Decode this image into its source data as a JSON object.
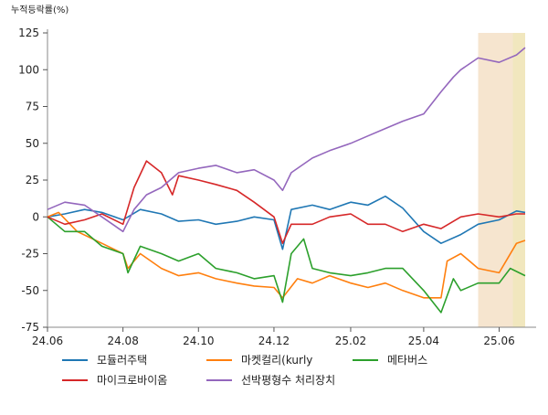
{
  "chart_data": {
    "type": "line",
    "ylabel": "누적등락률(%)",
    "ylim": [
      -75,
      125
    ],
    "yticks": [
      -75,
      -50,
      -25,
      0,
      25,
      50,
      75,
      100,
      125
    ],
    "xticks": [
      "24.06",
      "24.08",
      "24.10",
      "24.12",
      "25.02",
      "25.04",
      "25.06"
    ],
    "xrange": [
      "2024-06-01",
      "2025-06-22"
    ],
    "grid": false,
    "legend_position": "bottom",
    "shaded_regions": [
      {
        "from": "2025-05-15",
        "to": "2025-06-12",
        "color": "#f6e5cf"
      },
      {
        "from": "2025-06-12",
        "to": "2025-06-22",
        "color": "#f1e7be"
      }
    ],
    "series": [
      {
        "name": "모듈러주택",
        "color": "#1f77b4",
        "points": [
          [
            "2024-06-01",
            0
          ],
          [
            "2024-06-15",
            2
          ],
          [
            "2024-07-01",
            5
          ],
          [
            "2024-07-15",
            3
          ],
          [
            "2024-08-01",
            -2
          ],
          [
            "2024-08-15",
            5
          ],
          [
            "2024-09-01",
            2
          ],
          [
            "2024-09-15",
            -3
          ],
          [
            "2024-10-01",
            -2
          ],
          [
            "2024-10-15",
            -5
          ],
          [
            "2024-11-01",
            -3
          ],
          [
            "2024-11-15",
            0
          ],
          [
            "2024-12-01",
            -2
          ],
          [
            "2024-12-08",
            -22
          ],
          [
            "2024-12-15",
            5
          ],
          [
            "2025-01-01",
            8
          ],
          [
            "2025-01-15",
            5
          ],
          [
            "2025-02-01",
            10
          ],
          [
            "2025-02-15",
            8
          ],
          [
            "2025-03-01",
            14
          ],
          [
            "2025-03-15",
            6
          ],
          [
            "2025-04-01",
            -10
          ],
          [
            "2025-04-15",
            -18
          ],
          [
            "2025-05-01",
            -12
          ],
          [
            "2025-05-15",
            -5
          ],
          [
            "2025-06-01",
            -2
          ],
          [
            "2025-06-15",
            4
          ],
          [
            "2025-06-22",
            3
          ]
        ]
      },
      {
        "name": "마켓컬리(kurly",
        "color": "#ff7f0e",
        "points": [
          [
            "2024-06-01",
            0
          ],
          [
            "2024-06-10",
            3
          ],
          [
            "2024-06-25",
            -10
          ],
          [
            "2024-07-15",
            -18
          ],
          [
            "2024-08-01",
            -25
          ],
          [
            "2024-08-05",
            -35
          ],
          [
            "2024-08-15",
            -25
          ],
          [
            "2024-09-01",
            -35
          ],
          [
            "2024-09-15",
            -40
          ],
          [
            "2024-10-01",
            -38
          ],
          [
            "2024-10-15",
            -42
          ],
          [
            "2024-11-01",
            -45
          ],
          [
            "2024-11-15",
            -47
          ],
          [
            "2024-12-01",
            -48
          ],
          [
            "2024-12-08",
            -55
          ],
          [
            "2024-12-20",
            -42
          ],
          [
            "2025-01-01",
            -45
          ],
          [
            "2025-01-15",
            -40
          ],
          [
            "2025-02-01",
            -45
          ],
          [
            "2025-02-15",
            -48
          ],
          [
            "2025-03-01",
            -45
          ],
          [
            "2025-03-15",
            -50
          ],
          [
            "2025-04-01",
            -55
          ],
          [
            "2025-04-15",
            -55
          ],
          [
            "2025-04-20",
            -30
          ],
          [
            "2025-05-01",
            -25
          ],
          [
            "2025-05-15",
            -35
          ],
          [
            "2025-06-01",
            -38
          ],
          [
            "2025-06-08",
            -28
          ],
          [
            "2025-06-15",
            -18
          ],
          [
            "2025-06-22",
            -16
          ]
        ]
      },
      {
        "name": "메타버스",
        "color": "#2ca02c",
        "points": [
          [
            "2024-06-01",
            0
          ],
          [
            "2024-06-15",
            -10
          ],
          [
            "2024-07-01",
            -10
          ],
          [
            "2024-07-15",
            -20
          ],
          [
            "2024-08-01",
            -25
          ],
          [
            "2024-08-05",
            -38
          ],
          [
            "2024-08-15",
            -20
          ],
          [
            "2024-09-01",
            -25
          ],
          [
            "2024-09-15",
            -30
          ],
          [
            "2024-10-01",
            -25
          ],
          [
            "2024-10-15",
            -35
          ],
          [
            "2024-11-01",
            -38
          ],
          [
            "2024-11-15",
            -42
          ],
          [
            "2024-12-01",
            -40
          ],
          [
            "2024-12-08",
            -58
          ],
          [
            "2024-12-15",
            -25
          ],
          [
            "2024-12-25",
            -15
          ],
          [
            "2025-01-01",
            -35
          ],
          [
            "2025-01-15",
            -38
          ],
          [
            "2025-02-01",
            -40
          ],
          [
            "2025-02-15",
            -38
          ],
          [
            "2025-03-01",
            -35
          ],
          [
            "2025-03-15",
            -35
          ],
          [
            "2025-04-01",
            -50
          ],
          [
            "2025-04-15",
            -65
          ],
          [
            "2025-04-25",
            -42
          ],
          [
            "2025-05-01",
            -50
          ],
          [
            "2025-05-15",
            -45
          ],
          [
            "2025-06-01",
            -45
          ],
          [
            "2025-06-10",
            -35
          ],
          [
            "2025-06-22",
            -40
          ]
        ]
      },
      {
        "name": "마이크로바이옴",
        "color": "#d62728",
        "points": [
          [
            "2024-06-01",
            0
          ],
          [
            "2024-06-15",
            -5
          ],
          [
            "2024-07-01",
            -2
          ],
          [
            "2024-07-15",
            2
          ],
          [
            "2024-08-01",
            -5
          ],
          [
            "2024-08-10",
            20
          ],
          [
            "2024-08-20",
            38
          ],
          [
            "2024-09-01",
            30
          ],
          [
            "2024-09-10",
            15
          ],
          [
            "2024-09-15",
            28
          ],
          [
            "2024-10-01",
            25
          ],
          [
            "2024-10-15",
            22
          ],
          [
            "2024-11-01",
            18
          ],
          [
            "2024-11-15",
            10
          ],
          [
            "2024-12-01",
            0
          ],
          [
            "2024-12-08",
            -18
          ],
          [
            "2024-12-15",
            -5
          ],
          [
            "2025-01-01",
            -5
          ],
          [
            "2025-01-15",
            0
          ],
          [
            "2025-02-01",
            2
          ],
          [
            "2025-02-15",
            -5
          ],
          [
            "2025-03-01",
            -5
          ],
          [
            "2025-03-15",
            -10
          ],
          [
            "2025-04-01",
            -5
          ],
          [
            "2025-04-15",
            -8
          ],
          [
            "2025-05-01",
            0
          ],
          [
            "2025-05-15",
            2
          ],
          [
            "2025-06-01",
            0
          ],
          [
            "2025-06-15",
            2
          ],
          [
            "2025-06-22",
            2
          ]
        ]
      },
      {
        "name": "선박평형수 처리장치",
        "color": "#9467bd",
        "points": [
          [
            "2024-06-01",
            5
          ],
          [
            "2024-06-15",
            10
          ],
          [
            "2024-07-01",
            8
          ],
          [
            "2024-07-15",
            0
          ],
          [
            "2024-08-01",
            -10
          ],
          [
            "2024-08-10",
            5
          ],
          [
            "2024-08-20",
            15
          ],
          [
            "2024-09-01",
            20
          ],
          [
            "2024-09-15",
            30
          ],
          [
            "2024-10-01",
            33
          ],
          [
            "2024-10-15",
            35
          ],
          [
            "2024-11-01",
            30
          ],
          [
            "2024-11-15",
            32
          ],
          [
            "2024-12-01",
            25
          ],
          [
            "2024-12-08",
            18
          ],
          [
            "2024-12-15",
            30
          ],
          [
            "2025-01-01",
            40
          ],
          [
            "2025-01-15",
            45
          ],
          [
            "2025-02-01",
            50
          ],
          [
            "2025-02-15",
            55
          ],
          [
            "2025-03-01",
            60
          ],
          [
            "2025-03-15",
            65
          ],
          [
            "2025-04-01",
            70
          ],
          [
            "2025-04-15",
            85
          ],
          [
            "2025-04-25",
            95
          ],
          [
            "2025-05-01",
            100
          ],
          [
            "2025-05-15",
            108
          ],
          [
            "2025-06-01",
            105
          ],
          [
            "2025-06-15",
            110
          ],
          [
            "2025-06-22",
            115
          ]
        ]
      }
    ]
  }
}
